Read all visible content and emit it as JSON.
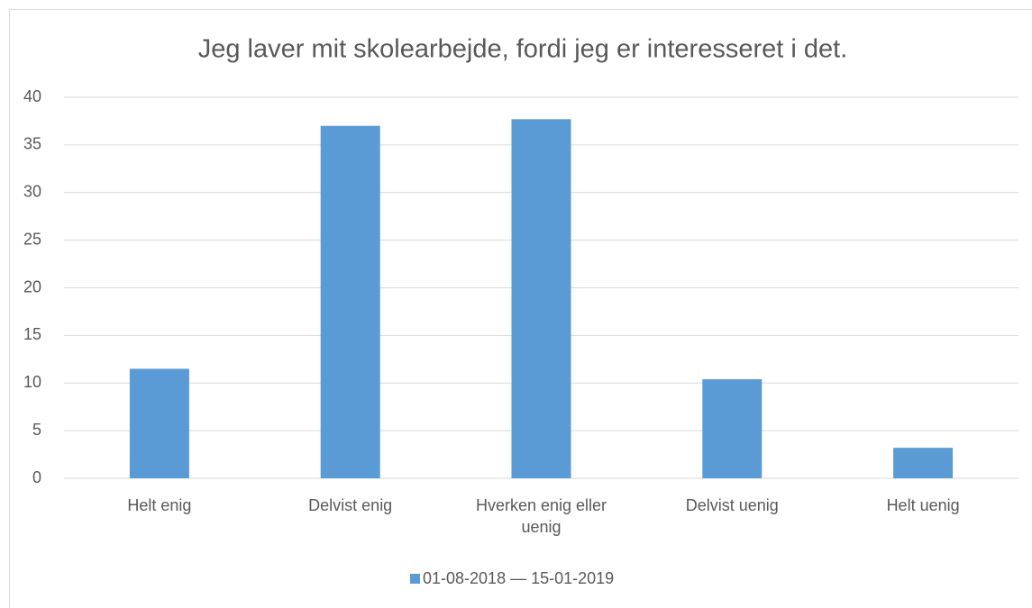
{
  "chart_data": {
    "type": "bar",
    "title": "Jeg laver mit skolearbejde, fordi jeg er interesseret i det.",
    "categories": [
      "Helt enig",
      "Delvist enig",
      "Hverken enig eller uenig",
      "Delvist uenig",
      "Helt uenig"
    ],
    "series": [
      {
        "name": "01-08-2018 — 15-01-2019",
        "color": "#5b9bd5",
        "values": [
          11.5,
          37,
          37.7,
          10.4,
          3.2
        ]
      }
    ],
    "ylim": [
      0,
      40
    ],
    "yticks": [
      0,
      5,
      10,
      15,
      20,
      25,
      30,
      35,
      40
    ],
    "grid": true,
    "legend": "bottom"
  }
}
